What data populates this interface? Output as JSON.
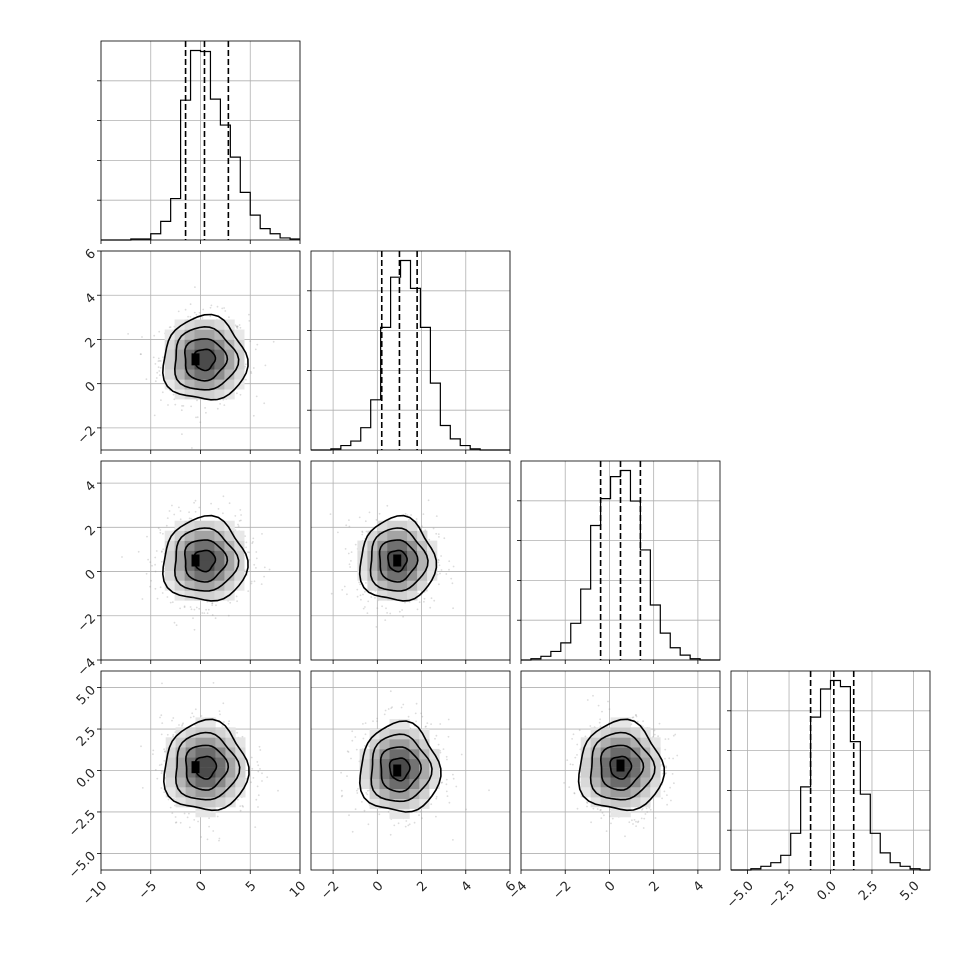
{
  "chart_data": {
    "type": "corner",
    "parameters": [
      "p0",
      "p1",
      "p2",
      "p3"
    ],
    "ranges": [
      [
        -10,
        10
      ],
      [
        -3,
        6
      ],
      [
        -4,
        5
      ],
      [
        -6,
        6
      ]
    ],
    "x_ticks": [
      {
        "values": [
          -10,
          -5,
          0,
          5,
          10
        ],
        "labels": [
          "−10",
          "−5",
          "0",
          "5",
          "10"
        ]
      },
      {
        "values": [
          -2,
          0,
          2,
          4,
          6
        ],
        "labels": [
          "−2",
          "0",
          "2",
          "4",
          "6"
        ]
      },
      {
        "values": [
          -4,
          -2,
          0,
          2,
          4
        ],
        "labels": [
          "−4",
          "−2",
          "0",
          "2",
          "4"
        ]
      },
      {
        "values": [
          -5,
          -2.5,
          0,
          2.5,
          5
        ],
        "labels": [
          "−5.0",
          "−2.5",
          "0.0",
          "2.5",
          "5.0"
        ]
      }
    ],
    "y_ticks": [
      null,
      {
        "values": [
          -2,
          0,
          2,
          4,
          6
        ],
        "labels": [
          "−2",
          "0",
          "2",
          "4",
          "6"
        ]
      },
      {
        "values": [
          -4,
          -2,
          0,
          2,
          4
        ],
        "labels": [
          "−4",
          "−2",
          "0",
          "2",
          "4"
        ]
      },
      {
        "values": [
          -5,
          -2.5,
          0,
          2.5,
          5
        ],
        "labels": [
          "−5.0",
          "−2.5",
          "0.0",
          "2.5",
          "5.0"
        ]
      }
    ],
    "histograms": [
      {
        "param": 0,
        "bin_edges": [
          -10,
          -9,
          -8,
          -7,
          -6,
          -5,
          -4,
          -3,
          -2,
          -1,
          0,
          1,
          2,
          3,
          4,
          5,
          6,
          7,
          8,
          9,
          10
        ],
        "counts": [
          0,
          0,
          0,
          1,
          1,
          6,
          18,
          40,
          135,
          183,
          182,
          136,
          111,
          80,
          46,
          24,
          11,
          6,
          2,
          1
        ],
        "quantiles": [
          -1.5,
          0.4,
          2.8
        ]
      },
      {
        "param": 1,
        "bin_edges": [
          -3,
          -2.55,
          -2.1,
          -1.65,
          -1.2,
          -0.75,
          -0.3,
          0.15,
          0.6,
          1.05,
          1.5,
          1.95,
          2.4,
          2.85,
          3.3,
          3.75,
          4.2,
          4.65,
          5.1,
          5.55,
          6
        ],
        "counts": [
          0,
          0,
          1,
          4,
          8,
          20,
          45,
          110,
          155,
          170,
          145,
          110,
          60,
          22,
          10,
          4,
          1,
          0,
          0,
          0
        ],
        "quantiles": [
          0.2,
          1.0,
          1.8
        ]
      },
      {
        "param": 2,
        "bin_edges": [
          -4,
          -3.55,
          -3.1,
          -2.65,
          -2.2,
          -1.75,
          -1.3,
          -0.85,
          -0.4,
          0.05,
          0.5,
          0.95,
          1.4,
          1.85,
          2.3,
          2.75,
          3.2,
          3.65,
          4.1,
          4.55,
          5
        ],
        "counts": [
          0,
          1,
          3,
          7,
          14,
          30,
          58,
          110,
          132,
          150,
          155,
          130,
          90,
          45,
          22,
          10,
          4,
          1,
          0,
          0
        ],
        "quantiles": [
          -0.4,
          0.5,
          1.4
        ]
      },
      {
        "param": 3,
        "bin_edges": [
          -6,
          -5.4,
          -4.8,
          -4.2,
          -3.6,
          -3,
          -2.4,
          -1.8,
          -1.2,
          -0.6,
          0,
          0.6,
          1.2,
          1.8,
          2.4,
          3,
          3.6,
          4.2,
          4.8,
          5.4,
          6
        ],
        "counts": [
          0,
          0,
          1,
          3,
          6,
          12,
          30,
          68,
          125,
          148,
          155,
          150,
          105,
          62,
          30,
          14,
          6,
          3,
          1,
          0
        ],
        "quantiles": [
          -1.2,
          0.2,
          1.4
        ]
      }
    ],
    "pairs": [
      {
        "x": 0,
        "y": 1,
        "center": [
          0.4,
          1.1
        ],
        "sx": 2.1,
        "sy": 0.95,
        "peak": [
          -0.5,
          1.1
        ]
      },
      {
        "x": 0,
        "y": 2,
        "center": [
          0.4,
          0.5
        ],
        "sx": 2.1,
        "sy": 0.95,
        "peak": [
          -0.5,
          0.5
        ]
      },
      {
        "x": 1,
        "y": 2,
        "center": [
          0.9,
          0.5
        ],
        "sx": 0.85,
        "sy": 0.95,
        "peak": [
          0.9,
          0.5
        ]
      },
      {
        "x": 0,
        "y": 3,
        "center": [
          0.5,
          0.2
        ],
        "sx": 2.1,
        "sy": 1.35,
        "peak": [
          -0.5,
          0.2
        ]
      },
      {
        "x": 1,
        "y": 3,
        "center": [
          1.0,
          0.1
        ],
        "sx": 0.9,
        "sy": 1.35,
        "peak": [
          0.9,
          0.0
        ]
      },
      {
        "x": 2,
        "y": 3,
        "center": [
          0.5,
          0.2
        ],
        "sx": 0.95,
        "sy": 1.35,
        "peak": [
          0.5,
          0.3
        ]
      }
    ],
    "grid": true
  }
}
